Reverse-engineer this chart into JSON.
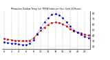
{
  "title": "Milwaukee Outdoor Temp (vs) THSW Index per Hour (Last 24 Hours)",
  "hours": [
    0,
    1,
    2,
    3,
    4,
    5,
    6,
    7,
    8,
    9,
    10,
    11,
    12,
    13,
    14,
    15,
    16,
    17,
    18,
    19,
    20,
    21,
    22,
    23
  ],
  "temp": [
    34,
    33,
    32,
    31,
    31,
    30,
    30,
    31,
    35,
    42,
    49,
    55,
    60,
    63,
    64,
    63,
    61,
    57,
    52,
    48,
    46,
    44,
    42,
    40
  ],
  "thsw": [
    28,
    27,
    26,
    25,
    24,
    23,
    23,
    25,
    32,
    43,
    55,
    64,
    72,
    78,
    79,
    77,
    72,
    65,
    57,
    50,
    46,
    42,
    38,
    35
  ],
  "temp_color": "#cc0000",
  "thsw_color": "#0000cc",
  "bg_color": "#ffffff",
  "plot_bg": "#f8f8f8",
  "grid_color": "#888888",
  "ylim_min": 15,
  "ylim_max": 85,
  "yticks": [
    20,
    30,
    40,
    50,
    60,
    70,
    80
  ],
  "xtick_every": 2
}
